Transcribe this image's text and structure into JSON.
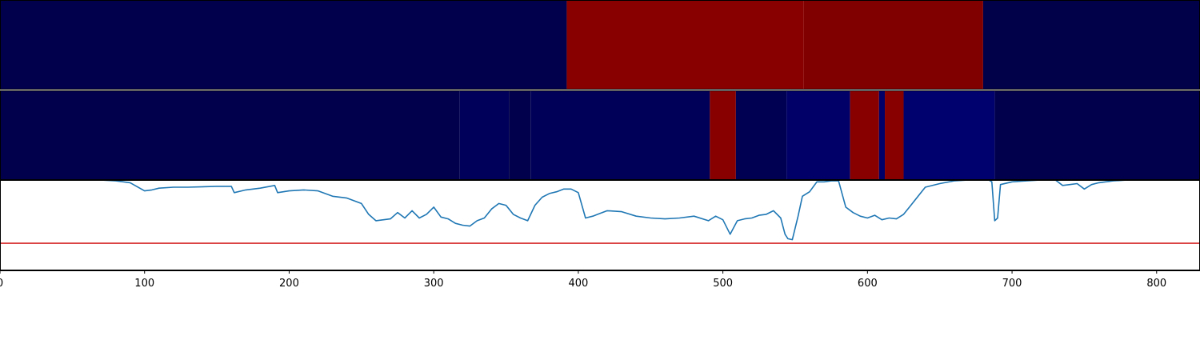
{
  "chart_data": {
    "type": "line",
    "xlim": [
      0,
      830
    ],
    "x_ticks": [
      0,
      100,
      200,
      300,
      400,
      500,
      600,
      700,
      800
    ],
    "x_tick_labels": [
      "0",
      "100",
      "200",
      "300",
      "400",
      "500",
      "600",
      "700",
      "800"
    ],
    "colormap": {
      "low": "#00004c",
      "high": "#800000"
    },
    "strip_top": {
      "segments": [
        {
          "start": 0,
          "end": 392,
          "color": "#00004c"
        },
        {
          "start": 392,
          "end": 556,
          "color": "#880000"
        },
        {
          "start": 556,
          "end": 680,
          "color": "#800000"
        },
        {
          "start": 680,
          "end": 830,
          "color": "#010149"
        }
      ]
    },
    "strip_bottom": {
      "segments": [
        {
          "start": 0,
          "end": 318,
          "color": "#00004c"
        },
        {
          "start": 318,
          "end": 352,
          "color": "#00005a"
        },
        {
          "start": 352,
          "end": 367,
          "color": "#00004c"
        },
        {
          "start": 367,
          "end": 491,
          "color": "#000058"
        },
        {
          "start": 491,
          "end": 509,
          "color": "#880000"
        },
        {
          "start": 509,
          "end": 544,
          "color": "#000052"
        },
        {
          "start": 544,
          "end": 588,
          "color": "#000068"
        },
        {
          "start": 588,
          "end": 608,
          "color": "#880000"
        },
        {
          "start": 608,
          "end": 612,
          "color": "#000068"
        },
        {
          "start": 612,
          "end": 625,
          "color": "#880000"
        },
        {
          "start": 625,
          "end": 688,
          "color": "#00006e"
        },
        {
          "start": 688,
          "end": 830,
          "color": "#00004c"
        }
      ]
    },
    "line_panel": {
      "ylim": [
        0,
        1
      ],
      "threshold": 0.3,
      "threshold_color": "#d62728",
      "series_color": "#1f77b4",
      "series": {
        "x": [
          0,
          60,
          70,
          80,
          90,
          100,
          105,
          110,
          120,
          130,
          150,
          160,
          162,
          170,
          180,
          190,
          192,
          200,
          210,
          220,
          230,
          240,
          250,
          255,
          260,
          270,
          275,
          280,
          285,
          290,
          295,
          300,
          305,
          310,
          315,
          320,
          325,
          330,
          335,
          340,
          345,
          350,
          355,
          360,
          365,
          370,
          375,
          380,
          385,
          390,
          395,
          400,
          405,
          410,
          415,
          420,
          430,
          440,
          450,
          460,
          470,
          480,
          490,
          495,
          500,
          505,
          510,
          515,
          520,
          525,
          530,
          535,
          540,
          543,
          545,
          548,
          552,
          555,
          560,
          565,
          570,
          575,
          580,
          585,
          590,
          595,
          600,
          605,
          610,
          615,
          620,
          625,
          630,
          640,
          650,
          660,
          670,
          680,
          684,
          686,
          688,
          690,
          692,
          700,
          710,
          720,
          730,
          735,
          740,
          745,
          750,
          755,
          760,
          770,
          780,
          790,
          800,
          830
        ],
        "y": [
          1.0,
          1.0,
          1.0,
          0.99,
          0.97,
          0.88,
          0.89,
          0.91,
          0.92,
          0.92,
          0.93,
          0.93,
          0.86,
          0.89,
          0.91,
          0.94,
          0.86,
          0.88,
          0.89,
          0.88,
          0.82,
          0.8,
          0.74,
          0.62,
          0.55,
          0.57,
          0.64,
          0.58,
          0.66,
          0.58,
          0.62,
          0.7,
          0.59,
          0.57,
          0.52,
          0.5,
          0.49,
          0.55,
          0.58,
          0.68,
          0.74,
          0.72,
          0.62,
          0.58,
          0.55,
          0.72,
          0.81,
          0.85,
          0.87,
          0.9,
          0.9,
          0.86,
          0.58,
          0.6,
          0.63,
          0.66,
          0.65,
          0.6,
          0.58,
          0.57,
          0.58,
          0.6,
          0.55,
          0.6,
          0.56,
          0.4,
          0.55,
          0.57,
          0.58,
          0.61,
          0.62,
          0.66,
          0.58,
          0.4,
          0.35,
          0.34,
          0.6,
          0.82,
          0.87,
          0.98,
          0.98,
          0.99,
          0.99,
          0.7,
          0.64,
          0.6,
          0.58,
          0.61,
          0.56,
          0.58,
          0.57,
          0.62,
          0.72,
          0.92,
          0.96,
          0.99,
          1.0,
          1.0,
          1.0,
          0.98,
          0.55,
          0.58,
          0.95,
          0.98,
          0.99,
          1.0,
          1.0,
          0.94,
          0.95,
          0.96,
          0.9,
          0.95,
          0.97,
          0.99,
          1.0,
          1.0,
          1.0,
          1.0
        ]
      }
    }
  }
}
